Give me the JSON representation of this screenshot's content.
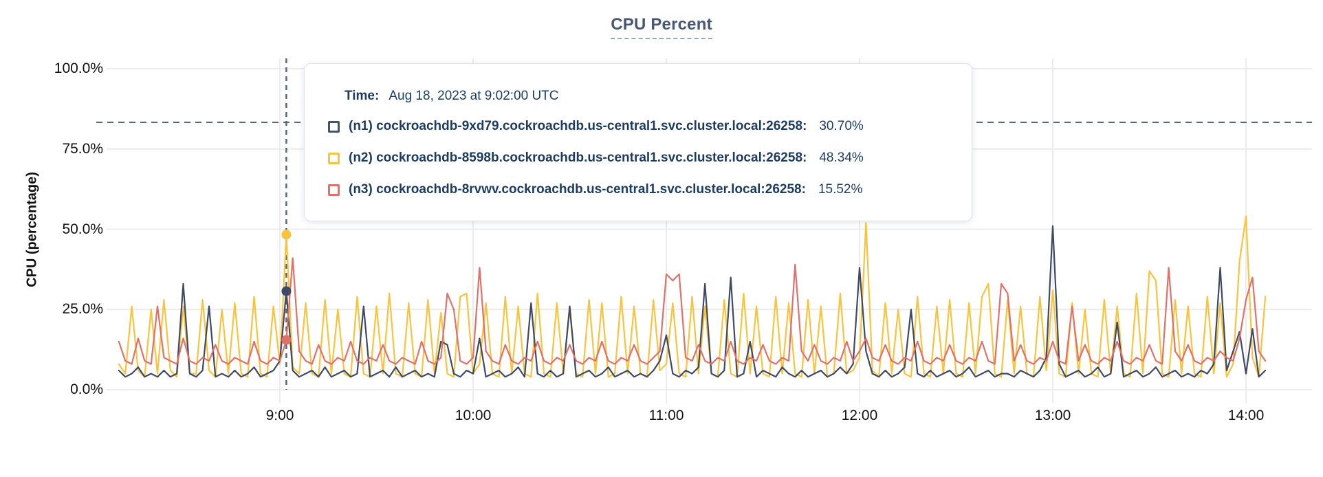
{
  "title": "CPU Percent",
  "colors": {
    "grid": "#ececec",
    "dashed_line": "#54687d",
    "axis_text": "#111111",
    "title_text": "#475872",
    "tooltip_text": "#1b3b5f",
    "n1": "#3e4a63",
    "n2": "#f9c33c",
    "n3": "#e0716a"
  },
  "tooltip": {
    "time_label": "Time:",
    "time_value": "Aug 18, 2023 at 9:02:00 UTC",
    "series": [
      {
        "id": "n1",
        "label": "(n1) cockroachdb-9xd79.cockroachdb.us-central1.svc.cluster.local:26258:",
        "value": "30.70%",
        "color": "#475468"
      },
      {
        "id": "n2",
        "label": "(n2) cockroachdb-8598b.cockroachdb.us-central1.svc.cluster.local:26258:",
        "value": "48.34%",
        "color": "#f5c53d"
      },
      {
        "id": "n3",
        "label": "(n3) cockroachdb-8rvwv.cockroachdb.us-central1.svc.cluster.local:26258:",
        "value": "15.52%",
        "color": "#e0716a"
      }
    ]
  },
  "chart_data": {
    "type": "line",
    "title": "CPU Percent",
    "xlabel": "",
    "ylabel": "CPU (percentage)",
    "ylim": [
      0,
      100
    ],
    "grid": true,
    "legend_position": "tooltip",
    "y_ticks": [
      "0.0%",
      "25.0%",
      "50.0%",
      "75.0%",
      "100.0%"
    ],
    "y_tick_percents": [
      0,
      25,
      50,
      75,
      100
    ],
    "x_ticks": [
      "9:00",
      "10:00",
      "11:00",
      "12:00",
      "13:00",
      "14:00"
    ],
    "x_tick_minutes": [
      540,
      600,
      660,
      720,
      780,
      840
    ],
    "x_start_min": 490,
    "x_step_min": 2,
    "threshold_percent": 83.3,
    "hover": {
      "time_min": 542,
      "time_text": "Aug 18, 2023 at 9:02:00 UTC",
      "values": [
        30.7,
        48.34,
        15.52
      ]
    },
    "series": [
      {
        "id": "n1",
        "name": "(n1) cockroachdb-9xd79.cockroachdb.us-central1.svc.cluster.local:26258",
        "color": "#3e4a63",
        "values": [
          6,
          4,
          5,
          7,
          4,
          5,
          4,
          6,
          4,
          5,
          33,
          5,
          4,
          6,
          26,
          4,
          5,
          4,
          6,
          4,
          5,
          7,
          4,
          5,
          6,
          9,
          30.7,
          6,
          4,
          5,
          6,
          4,
          7,
          4,
          5,
          6,
          4,
          5,
          26,
          4,
          5,
          6,
          4,
          7,
          4,
          5,
          6,
          4,
          5,
          4,
          15,
          14,
          5,
          4,
          6,
          5,
          16,
          4,
          5,
          6,
          4,
          5,
          7,
          4,
          27,
          5,
          4,
          6,
          4,
          5,
          26,
          4,
          5,
          6,
          4,
          5,
          7,
          4,
          5,
          6,
          4,
          5,
          4,
          6,
          9,
          17,
          5,
          4,
          6,
          5,
          7,
          33,
          5,
          4,
          6,
          35,
          4,
          5,
          15,
          4,
          6,
          5,
          4,
          7,
          5,
          4,
          6,
          4,
          5,
          6,
          4,
          5,
          7,
          5,
          8,
          38,
          12,
          5,
          4,
          6,
          4,
          5,
          7,
          25,
          5,
          4,
          6,
          4,
          5,
          6,
          4,
          5,
          7,
          4,
          5,
          6,
          4,
          5,
          5,
          4,
          6,
          5,
          4,
          6,
          10,
          51,
          8,
          4,
          5,
          6,
          4,
          5,
          7,
          4,
          5,
          21,
          4,
          5,
          6,
          4,
          5,
          7,
          4,
          5,
          6,
          4,
          5,
          4,
          6,
          5,
          8,
          38,
          6,
          12,
          18,
          5,
          19,
          4,
          6
        ]
      },
      {
        "id": "n2",
        "name": "(n2) cockroachdb-8598b.cockroachdb.us-central1.svc.cluster.local:26258",
        "color": "#f9c33c",
        "values": [
          8,
          5,
          26,
          6,
          4,
          25,
          5,
          28,
          6,
          4,
          26,
          5,
          5,
          28,
          6,
          4,
          25,
          5,
          27,
          5,
          4,
          29,
          5,
          4,
          26,
          8,
          48.3,
          7,
          5,
          27,
          5,
          4,
          28,
          5,
          25,
          5,
          4,
          29,
          5,
          4,
          26,
          5,
          30,
          5,
          4,
          27,
          5,
          4,
          28,
          5,
          24,
          5,
          4,
          29,
          30,
          5,
          8,
          27,
          5,
          4,
          29,
          5,
          26,
          5,
          4,
          30,
          5,
          4,
          27,
          5,
          25,
          5,
          4,
          28,
          5,
          27,
          4,
          5,
          29,
          5,
          26,
          5,
          4,
          28,
          6,
          8,
          27,
          5,
          4,
          29,
          5,
          26,
          5,
          4,
          28,
          5,
          4,
          30,
          5,
          26,
          5,
          4,
          29,
          5,
          27,
          5,
          4,
          28,
          5,
          26,
          4,
          5,
          30,
          5,
          6,
          10,
          52,
          6,
          4,
          27,
          5,
          25,
          5,
          4,
          29,
          5,
          4,
          26,
          5,
          28,
          5,
          4,
          27,
          5,
          29,
          33,
          5,
          4,
          28,
          5,
          26,
          5,
          4,
          29,
          6,
          31,
          5,
          4,
          27,
          5,
          25,
          5,
          4,
          28,
          5,
          26,
          5,
          4,
          30,
          5,
          37,
          34,
          5,
          4,
          28,
          5,
          26,
          5,
          4,
          29,
          5,
          27,
          4,
          8,
          40,
          54,
          10,
          4,
          29
        ]
      },
      {
        "id": "n3",
        "name": "(n3) cockroachdb-8rvwv.cockroachdb.us-central1.svc.cluster.local:26258",
        "color": "#e0716a",
        "values": [
          15,
          9,
          8,
          16,
          9,
          8,
          26,
          10,
          9,
          8,
          16,
          9,
          8,
          10,
          9,
          14,
          9,
          8,
          10,
          9,
          8,
          15,
          9,
          8,
          10,
          9,
          15.5,
          41,
          12,
          9,
          8,
          14,
          9,
          8,
          10,
          9,
          15,
          9,
          8,
          10,
          9,
          14,
          9,
          8,
          10,
          9,
          8,
          15,
          9,
          8,
          10,
          30,
          25,
          9,
          8,
          10,
          38,
          12,
          9,
          8,
          14,
          9,
          8,
          10,
          9,
          15,
          9,
          8,
          10,
          9,
          14,
          9,
          8,
          10,
          9,
          15,
          9,
          8,
          10,
          9,
          14,
          9,
          8,
          10,
          12,
          36,
          34,
          36,
          10,
          9,
          14,
          9,
          8,
          10,
          9,
          15,
          9,
          8,
          10,
          9,
          14,
          9,
          8,
          10,
          9,
          39,
          12,
          9,
          14,
          9,
          8,
          10,
          9,
          15,
          9,
          12,
          16,
          10,
          9,
          14,
          9,
          8,
          10,
          9,
          15,
          9,
          8,
          10,
          9,
          14,
          9,
          8,
          10,
          9,
          15,
          9,
          8,
          33,
          30,
          9,
          14,
          9,
          8,
          10,
          9,
          15,
          9,
          8,
          26,
          9,
          14,
          9,
          8,
          10,
          9,
          15,
          9,
          8,
          10,
          9,
          14,
          9,
          8,
          38,
          12,
          9,
          14,
          9,
          8,
          10,
          9,
          12,
          10,
          9,
          16,
          28,
          35,
          12,
          9
        ]
      }
    ]
  }
}
